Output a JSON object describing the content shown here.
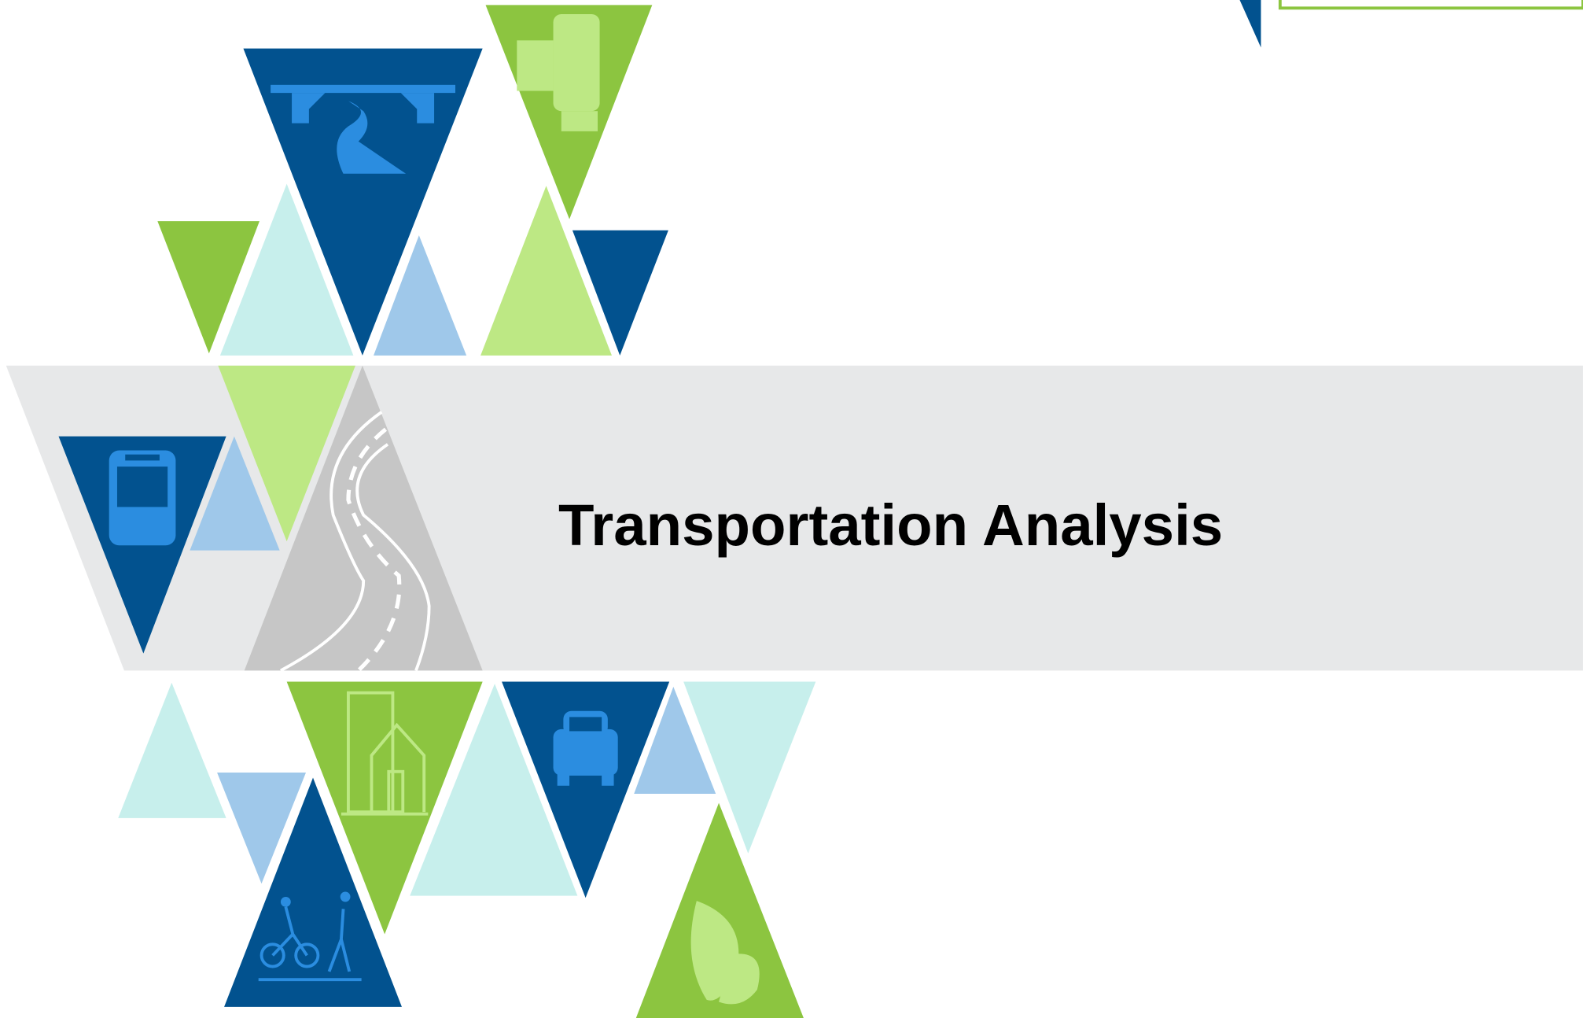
{
  "title": "Transportation Analysis"
}
